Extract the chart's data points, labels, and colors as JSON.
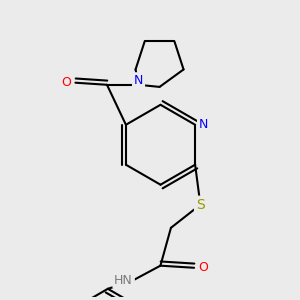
{
  "bg_color": "#ebebeb",
  "bond_color": "#000000",
  "bond_width": 1.5,
  "atom_colors": {
    "N": "#0000ff",
    "O": "#ff0000",
    "S": "#999900",
    "H": "#7a7a7a",
    "C": "#000000"
  },
  "font_size_atom": 9
}
